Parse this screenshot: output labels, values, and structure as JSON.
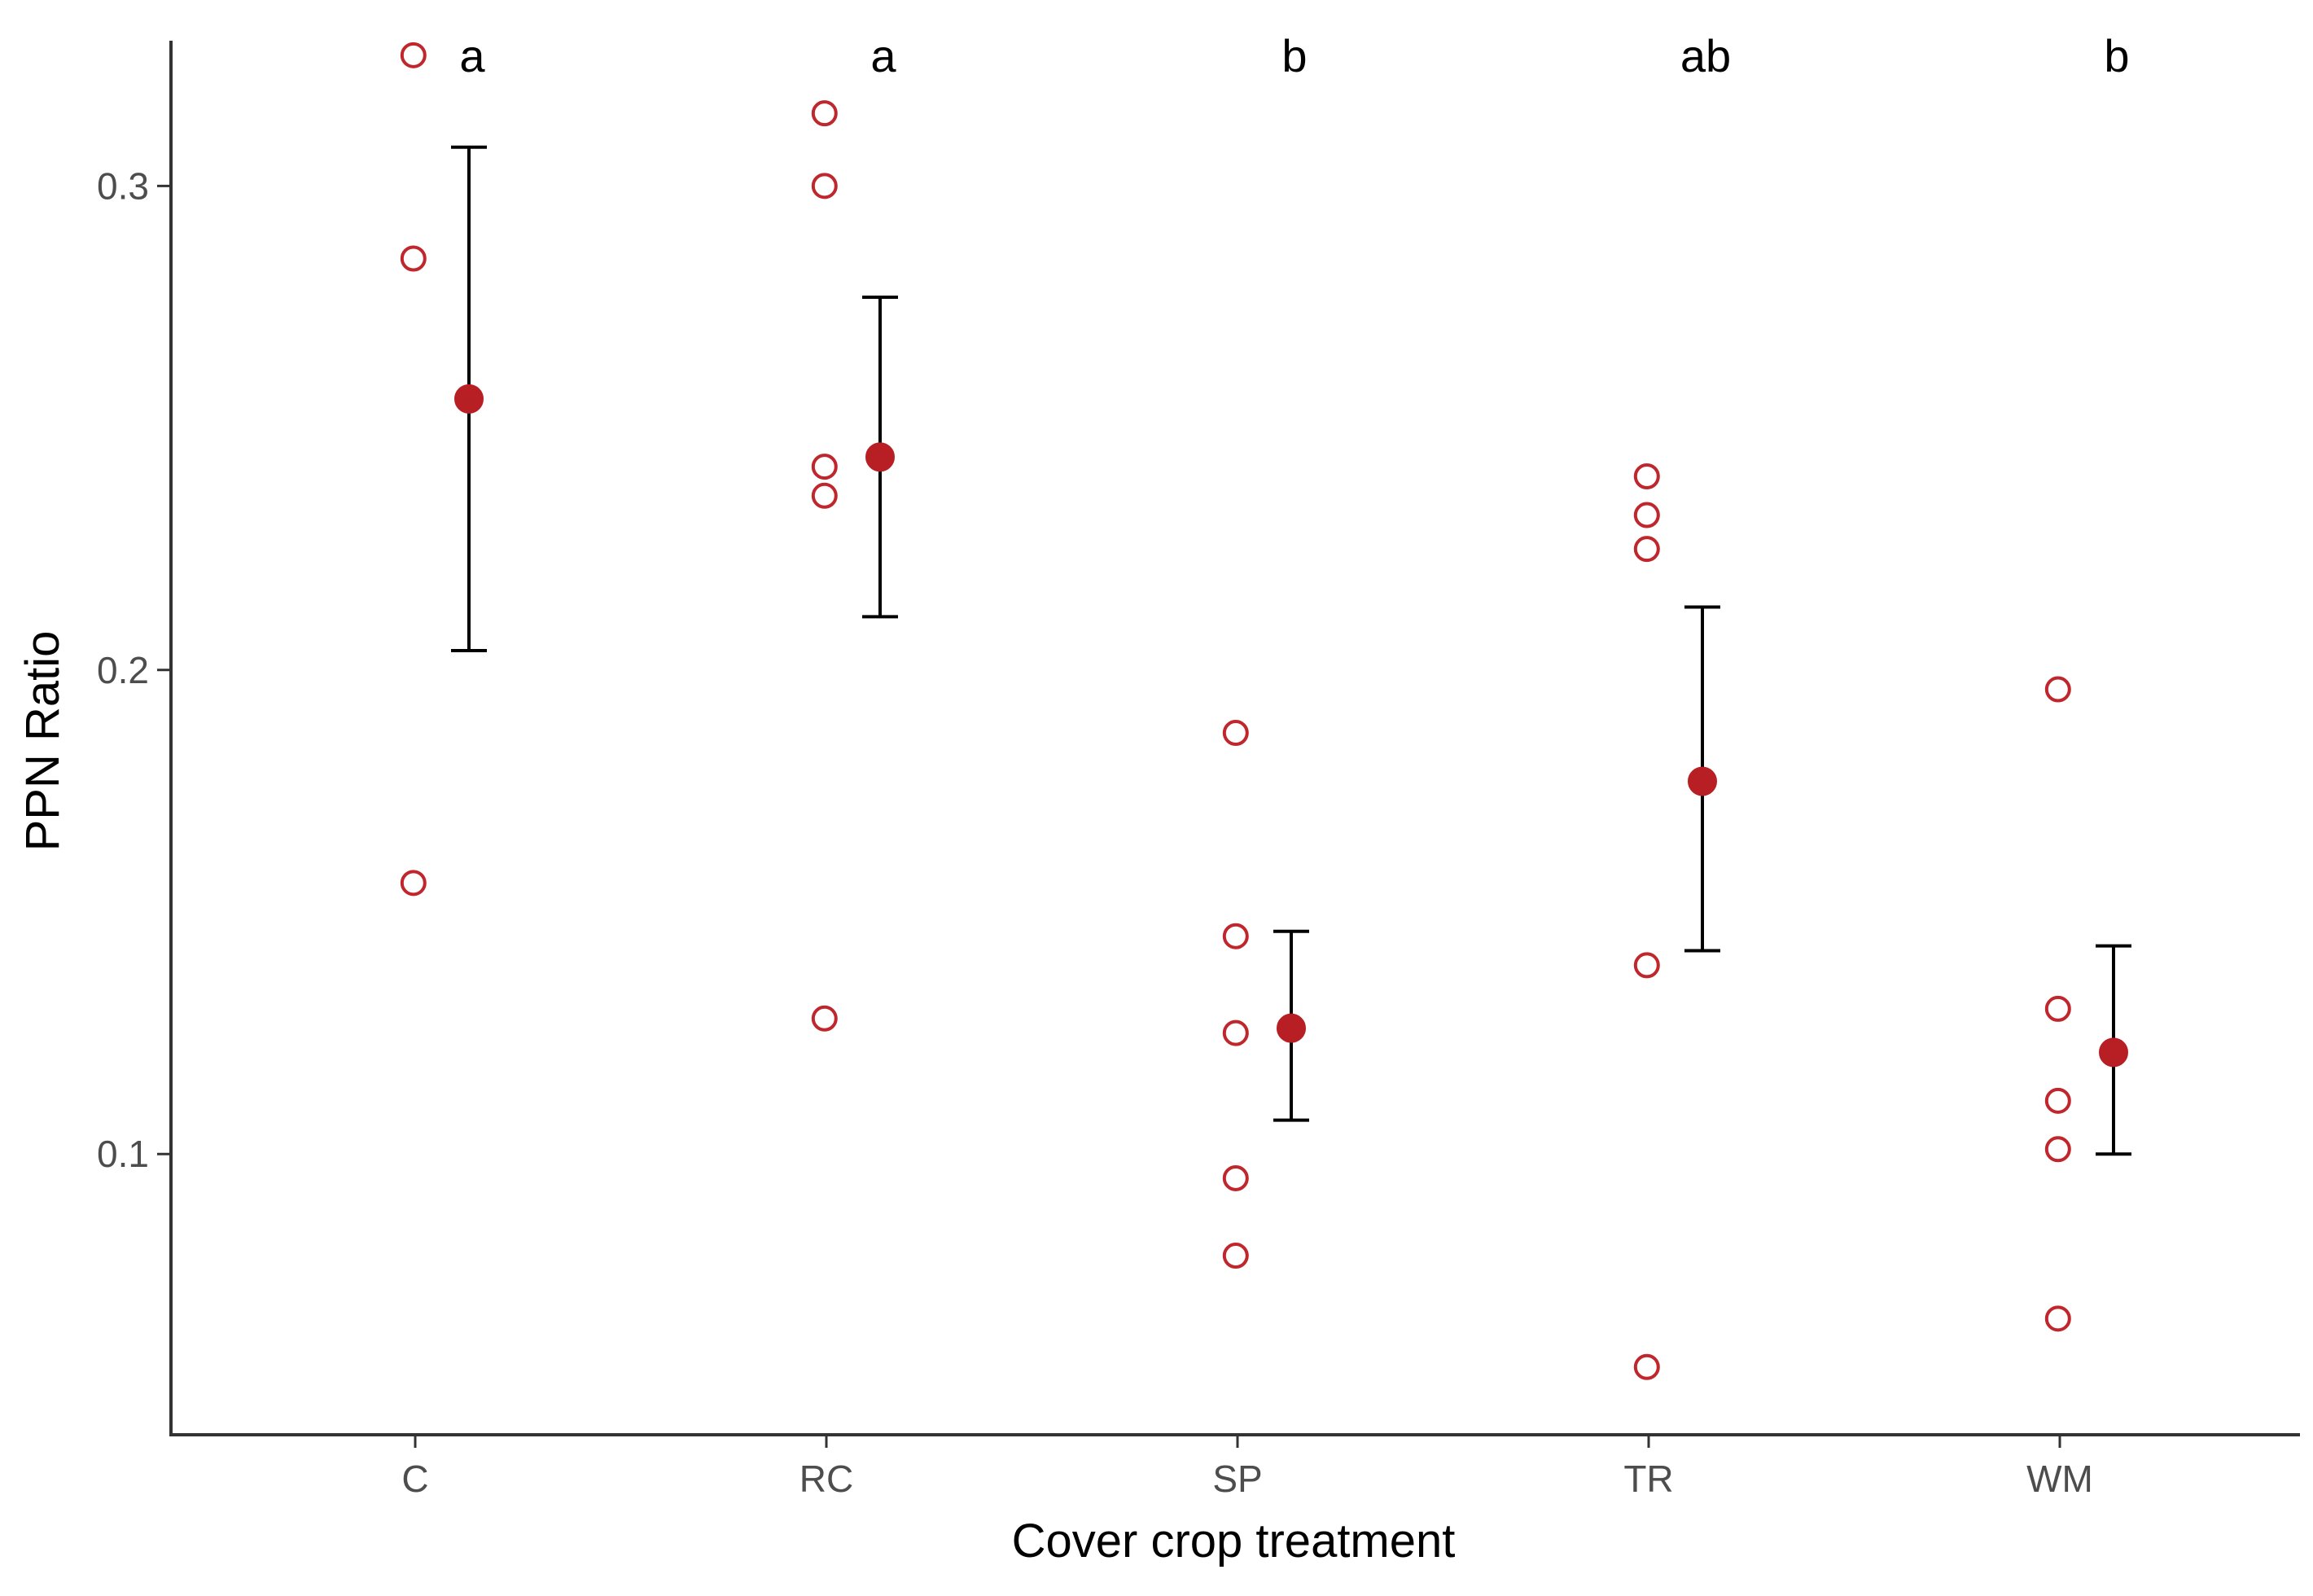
{
  "chart_data": {
    "type": "scatter",
    "xlabel": "Cover crop treatment",
    "ylabel": "PPN Ratio",
    "categories": [
      "C",
      "RC",
      "SP",
      "TR",
      "WM"
    ],
    "yticks": [
      0.1,
      0.2,
      0.3
    ],
    "ytick_labels": [
      "0.1",
      "0.2",
      "0.3"
    ],
    "ylim": [
      0.042,
      0.33
    ],
    "grid": false,
    "legend": "none",
    "significance_letters": [
      "a",
      "a",
      "b",
      "ab",
      "b"
    ],
    "observations": [
      [
        0.327,
        0.285,
        0.156
      ],
      [
        0.315,
        0.3,
        0.242,
        0.236,
        0.128
      ],
      [
        0.187,
        0.145,
        0.125,
        0.095,
        0.079
      ],
      [
        0.24,
        0.232,
        0.225,
        0.139,
        0.056
      ],
      [
        0.196,
        0.13,
        0.111,
        0.101,
        0.066
      ]
    ],
    "means": [
      0.256,
      0.244,
      0.126,
      0.177,
      0.121
    ],
    "error_bar_upper": [
      0.308,
      0.277,
      0.146,
      0.213,
      0.143
    ],
    "error_bar_lower": [
      0.204,
      0.211,
      0.107,
      0.142,
      0.1
    ],
    "colors": {
      "observation_stroke": "#c0272d",
      "mean_fill": "#b81f24",
      "error_bar": "#000000",
      "axis": "#333333"
    }
  }
}
